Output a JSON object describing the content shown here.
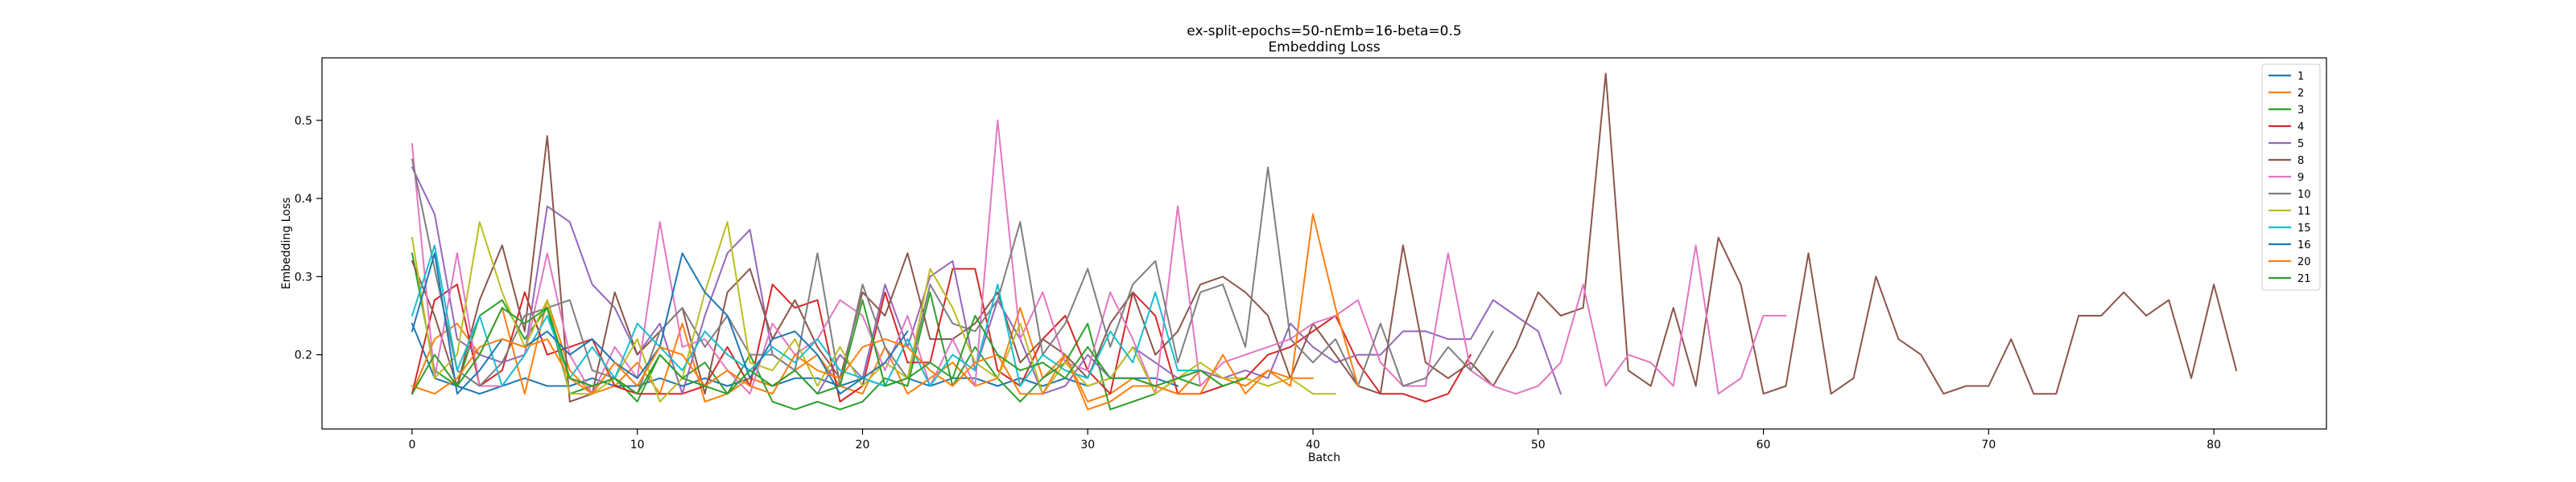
{
  "chart_data": {
    "type": "line",
    "title": "ex-split-epochs=50-nEmb=16-beta=0.5",
    "subtitle": "Embedding Loss",
    "xlabel": "Batch",
    "ylabel": "Embedding Loss",
    "xlim": [
      -4,
      85
    ],
    "ylim": [
      0.105,
      0.58
    ],
    "xticks": [
      0,
      10,
      20,
      30,
      40,
      50,
      60,
      70,
      80
    ],
    "yticks": [
      0.2,
      0.3,
      0.4,
      0.5
    ],
    "grid": false,
    "legend_position": "top-right",
    "series": [
      {
        "name": "1",
        "color": "#1f77b4",
        "values": [
          0.24,
          0.17,
          0.16,
          0.15,
          0.16,
          0.17,
          0.16,
          0.16,
          0.17,
          0.16,
          0.16,
          0.17,
          0.16,
          0.17,
          0.16,
          0.17,
          0.16,
          0.17,
          0.17,
          0.16,
          0.17,
          0.16,
          0.17,
          0.16,
          0.17,
          0.17,
          0.16,
          0.17,
          0.16,
          0.17,
          0.16,
          0.17,
          0.17,
          0.17,
          0.16
        ]
      },
      {
        "name": "2",
        "color": "#ff7f0e",
        "values": [
          0.15,
          0.22,
          0.24,
          0.2,
          0.26,
          0.15,
          0.27,
          0.18,
          0.15,
          0.16,
          0.19,
          0.15,
          0.24,
          0.14,
          0.15,
          0.17,
          0.16,
          0.18,
          0.2,
          0.16,
          0.15,
          0.21,
          0.15,
          0.17,
          0.19,
          0.16,
          0.17,
          0.26,
          0.17,
          0.2,
          0.14,
          0.15,
          0.17,
          0.16,
          0.15,
          0.18,
          0.17,
          0.16,
          0.18,
          0.17,
          0.17
        ]
      },
      {
        "name": "3",
        "color": "#2ca02c",
        "values": [
          0.33,
          0.18,
          0.16,
          0.25,
          0.27,
          0.22,
          0.26,
          0.15,
          0.16,
          0.17,
          0.14,
          0.2,
          0.17,
          0.19,
          0.15,
          0.2,
          0.14,
          0.13,
          0.14,
          0.13,
          0.14,
          0.17,
          0.16,
          0.28,
          0.16,
          0.21,
          0.17,
          0.14,
          0.17,
          0.19,
          0.24,
          0.13,
          0.14,
          0.15,
          0.17,
          0.16
        ]
      },
      {
        "name": "4",
        "color": "#d62728",
        "values": [
          0.15,
          0.27,
          0.29,
          0.16,
          0.18,
          0.28,
          0.2,
          0.21,
          0.22,
          0.16,
          0.15,
          0.15,
          0.15,
          0.16,
          0.21,
          0.16,
          0.29,
          0.26,
          0.27,
          0.14,
          0.16,
          0.28,
          0.19,
          0.19,
          0.31,
          0.31,
          0.18,
          0.16,
          0.22,
          0.25,
          0.18,
          0.15,
          0.28,
          0.25,
          0.15,
          0.15,
          0.16,
          0.17,
          0.2,
          0.21,
          0.23,
          0.25,
          0.19,
          0.15,
          0.15,
          0.14,
          0.15,
          0.2
        ]
      },
      {
        "name": "5",
        "color": "#9467bd",
        "values": [
          0.44,
          0.38,
          0.22,
          0.2,
          0.19,
          0.2,
          0.39,
          0.37,
          0.29,
          0.26,
          0.2,
          0.24,
          0.15,
          0.25,
          0.33,
          0.36,
          0.2,
          0.18,
          0.15,
          0.2,
          0.17,
          0.29,
          0.21,
          0.3,
          0.32,
          0.18,
          0.27,
          0.22,
          0.15,
          0.16,
          0.2,
          0.17,
          0.21,
          0.19,
          0.17,
          0.18,
          0.17,
          0.18,
          0.17,
          0.24,
          0.21,
          0.19,
          0.2,
          0.2,
          0.23,
          0.23,
          0.22,
          0.22,
          0.27,
          0.25,
          0.23,
          0.15
        ]
      },
      {
        "name": "8",
        "color": "#8c564b",
        "values": [
          0.32,
          0.25,
          0.16,
          0.27,
          0.34,
          0.23,
          0.48,
          0.14,
          0.15,
          0.28,
          0.2,
          0.23,
          0.26,
          0.15,
          0.28,
          0.31,
          0.22,
          0.27,
          0.21,
          0.17,
          0.28,
          0.25,
          0.33,
          0.22,
          0.22,
          0.24,
          0.28,
          0.19,
          0.22,
          0.2,
          0.17,
          0.24,
          0.28,
          0.2,
          0.23,
          0.29,
          0.3,
          0.28,
          0.25,
          0.17,
          0.24,
          0.2,
          0.16,
          0.15,
          0.34,
          0.19,
          0.17,
          0.19,
          0.16,
          0.21,
          0.28,
          0.25,
          0.26,
          0.56,
          0.18,
          0.16,
          0.26,
          0.16,
          0.35,
          0.29,
          0.15,
          0.16,
          0.33,
          0.15,
          0.17,
          0.3,
          0.22,
          0.2,
          0.15,
          0.16,
          0.16,
          0.22,
          0.15,
          0.15,
          0.25,
          0.25,
          0.28,
          0.25,
          0.27,
          0.17,
          0.29,
          0.18
        ]
      },
      {
        "name": "9",
        "color": "#e377c2",
        "values": [
          0.47,
          0.17,
          0.33,
          0.16,
          0.16,
          0.2,
          0.33,
          0.2,
          0.15,
          0.21,
          0.17,
          0.37,
          0.21,
          0.22,
          0.18,
          0.15,
          0.24,
          0.2,
          0.22,
          0.27,
          0.25,
          0.18,
          0.25,
          0.16,
          0.22,
          0.16,
          0.5,
          0.22,
          0.28,
          0.19,
          0.18,
          0.28,
          0.22,
          0.15,
          0.39,
          0.16,
          0.19,
          0.2,
          0.21,
          0.22,
          0.24,
          0.25,
          0.27,
          0.19,
          0.16,
          0.16,
          0.33,
          0.18,
          0.16,
          0.15,
          0.16,
          0.19,
          0.29,
          0.16,
          0.2,
          0.19,
          0.16,
          0.34,
          0.15,
          0.17,
          0.25,
          0.25
        ]
      },
      {
        "name": "10",
        "color": "#7f7f7f",
        "values": [
          0.45,
          0.31,
          0.18,
          0.16,
          0.19,
          0.25,
          0.26,
          0.27,
          0.18,
          0.17,
          0.15,
          0.23,
          0.26,
          0.21,
          0.25,
          0.2,
          0.2,
          0.18,
          0.33,
          0.16,
          0.29,
          0.21,
          0.17,
          0.29,
          0.24,
          0.23,
          0.27,
          0.37,
          0.2,
          0.24,
          0.31,
          0.21,
          0.29,
          0.32,
          0.19,
          0.28,
          0.29,
          0.21,
          0.44,
          0.22,
          0.19,
          0.22,
          0.16,
          0.24,
          0.16,
          0.17,
          0.21,
          0.18,
          0.23
        ]
      },
      {
        "name": "11",
        "color": "#bcbd22",
        "values": [
          0.35,
          0.17,
          0.2,
          0.37,
          0.28,
          0.21,
          0.27,
          0.15,
          0.15,
          0.17,
          0.22,
          0.14,
          0.17,
          0.28,
          0.37,
          0.19,
          0.18,
          0.22,
          0.16,
          0.21,
          0.16,
          0.19,
          0.17,
          0.31,
          0.26,
          0.19,
          0.17,
          0.24,
          0.15,
          0.19,
          0.16,
          0.17,
          0.21,
          0.15,
          0.17,
          0.19,
          0.17,
          0.17,
          0.16,
          0.17,
          0.15,
          0.15
        ]
      },
      {
        "name": "15",
        "color": "#17becf",
        "values": [
          0.25,
          0.34,
          0.18,
          0.25,
          0.16,
          0.2,
          0.25,
          0.17,
          0.21,
          0.17,
          0.24,
          0.21,
          0.18,
          0.23,
          0.2,
          0.18,
          0.21,
          0.19,
          0.22,
          0.18,
          0.17,
          0.16,
          0.22,
          0.16,
          0.2,
          0.18,
          0.29,
          0.16,
          0.2,
          0.18,
          0.17,
          0.23,
          0.19,
          0.28,
          0.18,
          0.18
        ]
      },
      {
        "name": "16",
        "color": "#1f77b4",
        "values": [
          0.23,
          0.33,
          0.15,
          0.18,
          0.22,
          0.21,
          0.23,
          0.2,
          0.22,
          0.19,
          0.17,
          0.21,
          0.33,
          0.28,
          0.25,
          0.17,
          0.22,
          0.23,
          0.2,
          0.15,
          0.17,
          0.19,
          0.23
        ]
      },
      {
        "name": "20",
        "color": "#ff7f0e",
        "values": [
          0.16,
          0.15,
          0.17,
          0.21,
          0.22,
          0.21,
          0.22,
          0.17,
          0.15,
          0.19,
          0.16,
          0.21,
          0.2,
          0.16,
          0.18,
          0.16,
          0.15,
          0.2,
          0.18,
          0.17,
          0.21,
          0.22,
          0.21,
          0.18,
          0.16,
          0.19,
          0.2,
          0.15,
          0.15,
          0.2,
          0.13,
          0.14,
          0.16,
          0.16,
          0.15,
          0.15,
          0.2,
          0.15,
          0.18,
          0.16,
          0.38,
          0.26,
          0.16
        ]
      },
      {
        "name": "21",
        "color": "#2ca02c",
        "values": [
          0.15,
          0.2,
          0.16,
          0.2,
          0.26,
          0.24,
          0.26,
          0.17,
          0.16,
          0.17,
          0.15,
          0.2,
          0.17,
          0.16,
          0.15,
          0.18,
          0.16,
          0.18,
          0.15,
          0.16,
          0.27,
          0.16,
          0.17,
          0.19,
          0.17,
          0.25,
          0.2,
          0.18,
          0.19,
          0.17,
          0.21,
          0.17,
          0.17,
          0.16,
          0.17,
          0.18,
          0.16,
          0.17
        ]
      }
    ]
  }
}
